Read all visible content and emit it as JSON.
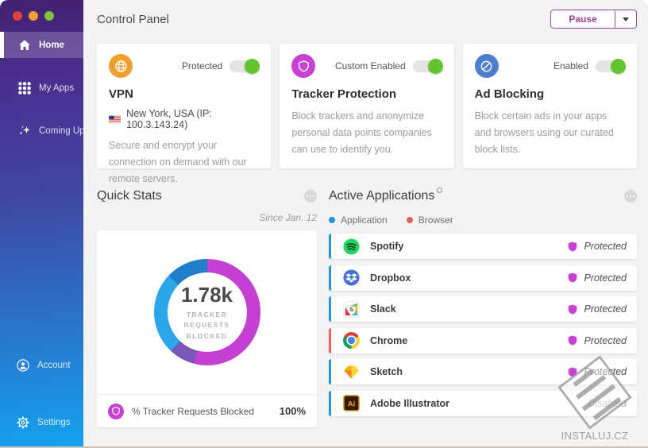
{
  "sidebar": {
    "items": [
      {
        "label": "Home",
        "icon": "home-icon",
        "active": true
      },
      {
        "label": "My Apps",
        "icon": "grid-icon",
        "active": false
      },
      {
        "label": "Coming Up",
        "icon": "sparkles-icon",
        "active": false
      }
    ],
    "footer_items": [
      {
        "label": "Account",
        "icon": "account-icon"
      },
      {
        "label": "Settings",
        "icon": "settings-icon"
      }
    ]
  },
  "header": {
    "title": "Control Panel",
    "pause_button": "Pause"
  },
  "feature_cards": [
    {
      "title": "VPN",
      "status_label": "Protected",
      "toggle_on": true,
      "icon": "globe-icon",
      "icon_color": "#efa02e",
      "location": "New York, USA (IP: 100.3.143.24)",
      "description": "Secure and encrypt your connection on demand with our remote servers."
    },
    {
      "title": "Tracker Protection",
      "status_label": "Custom Enabled",
      "toggle_on": true,
      "icon": "shield-icon",
      "icon_color": "#c643d2",
      "location": null,
      "description": "Block trackers and anonymize personal data points companies can use to identify you."
    },
    {
      "title": "Ad Blocking",
      "status_label": "Enabled",
      "toggle_on": true,
      "icon": "block-icon",
      "icon_color": "#4e7ece",
      "location": null,
      "description": "Block certain ads in your apps and browsers using our curated block lists."
    }
  ],
  "quick_stats": {
    "title": "Quick Stats",
    "since": "Since Jan. 12",
    "footer_label": "% Tracker Requests Blocked",
    "footer_value": "100%"
  },
  "chart_data": {
    "type": "pie",
    "title": "Tracker Requests Blocked donut",
    "center_value": "1.78k",
    "center_label_lines": [
      "TRACKER",
      "REQUESTS",
      "BLOCKED"
    ],
    "segments": [
      {
        "name": "magenta",
        "color": "#c43fd2",
        "percent": 54
      },
      {
        "name": "violet",
        "color": "#7b58b8",
        "percent": 8
      },
      {
        "name": "light-blue",
        "color": "#2aa6ea",
        "percent": 25
      },
      {
        "name": "dark-blue",
        "color": "#1f7dc9",
        "percent": 13
      }
    ],
    "legend_position": "none"
  },
  "active_apps": {
    "title": "Active Applications",
    "legend": [
      {
        "label": "Application",
        "color": "#2596db"
      },
      {
        "label": "Browser",
        "color": "#e4635a"
      }
    ],
    "apps": [
      {
        "name": "Spotify",
        "type": "application",
        "status": "Protected",
        "status_state": "protected"
      },
      {
        "name": "Dropbox",
        "type": "application",
        "status": "Protected",
        "status_state": "protected"
      },
      {
        "name": "Slack",
        "type": "application",
        "status": "Protected",
        "status_state": "protected"
      },
      {
        "name": "Chrome",
        "type": "browser",
        "status": "Protected",
        "status_state": "protected"
      },
      {
        "name": "Sketch",
        "type": "application",
        "status": "Protected",
        "status_state": "protected"
      },
      {
        "name": "Adobe Illustrator",
        "type": "application",
        "status": "Disabled",
        "status_state": "disabled"
      }
    ]
  },
  "watermark": {
    "text": "INSTALUJ.CZ"
  }
}
